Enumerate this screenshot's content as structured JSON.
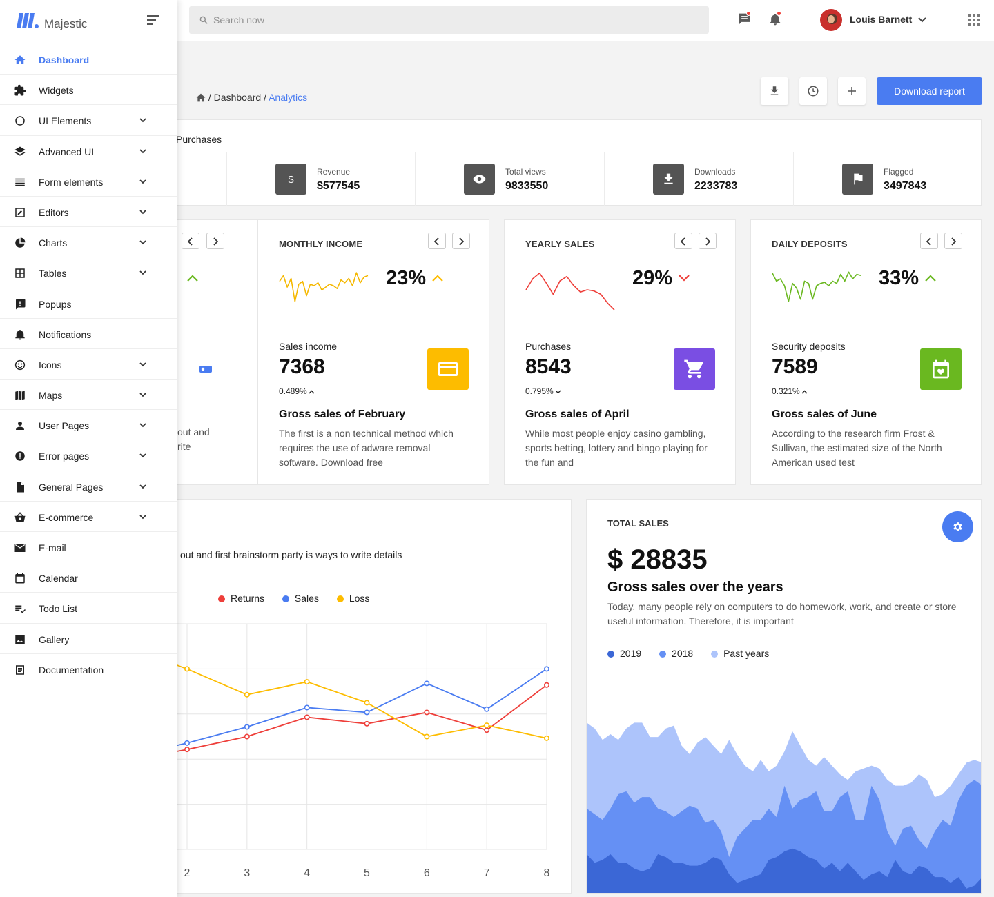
{
  "brand": {
    "name": "Majestic"
  },
  "search": {
    "placeholder": "Search now"
  },
  "user": {
    "name": "Louis Barnett"
  },
  "sidebar": {
    "items": [
      {
        "label": "Dashboard",
        "icon": "home-icon",
        "active": true,
        "expandable": false
      },
      {
        "label": "Widgets",
        "icon": "puzzle-icon",
        "expandable": false
      },
      {
        "label": "UI Elements",
        "icon": "circle-icon",
        "expandable": true
      },
      {
        "label": "Advanced UI",
        "icon": "layers-icon",
        "expandable": true
      },
      {
        "label": "Form elements",
        "icon": "lines-icon",
        "expandable": true
      },
      {
        "label": "Editors",
        "icon": "edit-icon",
        "expandable": true
      },
      {
        "label": "Charts",
        "icon": "pie-chart-icon",
        "expandable": true
      },
      {
        "label": "Tables",
        "icon": "table-icon",
        "expandable": true
      },
      {
        "label": "Popups",
        "icon": "popup-icon",
        "expandable": false
      },
      {
        "label": "Notifications",
        "icon": "bell-icon",
        "expandable": false
      },
      {
        "label": "Icons",
        "icon": "smiley-icon",
        "expandable": true
      },
      {
        "label": "Maps",
        "icon": "map-icon",
        "expandable": true
      },
      {
        "label": "User Pages",
        "icon": "person-icon",
        "expandable": true
      },
      {
        "label": "Error pages",
        "icon": "error-icon",
        "expandable": true
      },
      {
        "label": "General Pages",
        "icon": "file-icon",
        "expandable": true
      },
      {
        "label": "E-commerce",
        "icon": "basket-icon",
        "expandable": true
      },
      {
        "label": "E-mail",
        "icon": "mail-icon",
        "expandable": false
      },
      {
        "label": "Calendar",
        "icon": "calendar-icon",
        "expandable": false
      },
      {
        "label": "Todo List",
        "icon": "checklist-icon",
        "expandable": false
      },
      {
        "label": "Gallery",
        "icon": "image-icon",
        "expandable": false
      },
      {
        "label": "Documentation",
        "icon": "document-icon",
        "expandable": false
      }
    ]
  },
  "breadcrumb": {
    "sep": "/",
    "parent": "Dashboard",
    "current": "Analytics"
  },
  "actions": {
    "download_report": "Download report"
  },
  "stats": {
    "tab": "Purchases",
    "items": [
      {
        "label": "Revenue",
        "value": "$577545",
        "icon": "dollar-icon"
      },
      {
        "label": "Total views",
        "value": "9833550",
        "icon": "eye-icon"
      },
      {
        "label": "Downloads",
        "value": "2233783",
        "icon": "download-icon"
      },
      {
        "label": "Flagged",
        "value": "3497843",
        "icon": "flag-icon"
      }
    ]
  },
  "mini_cards": [
    {
      "title": "MONTHLY INCOME",
      "percent": "23%",
      "trend": "up",
      "spark_color": "#f5b800",
      "spark": [
        8,
        4,
        12,
        6,
        22,
        10,
        8,
        18,
        10,
        11,
        9,
        14,
        12,
        10,
        11,
        13,
        7,
        9,
        6,
        11,
        2,
        9,
        5,
        4
      ],
      "sub": "Sales income",
      "value": "7368",
      "change": "0.489%",
      "change_dir": "up",
      "icon": "credit-card-icon",
      "icon_bg": "#fdbc00",
      "gross_title": "Gross sales of February",
      "description": "The first is a non technical method which requires the use of adware removal software. Download free"
    },
    {
      "title": "YEARLY SALES",
      "percent": "29%",
      "trend": "down",
      "spark_color": "#ee3f3a",
      "spark": [
        18,
        8,
        3,
        12,
        22,
        10,
        6,
        14,
        20,
        18,
        19,
        22,
        30,
        36
      ],
      "sub": "Purchases",
      "value": "8543",
      "change": "0.795%",
      "change_dir": "down",
      "icon": "cart-icon",
      "icon_bg": "#7a4ee3",
      "gross_title": "Gross sales of April",
      "description": "While most people enjoy casino gambling, sports betting, lottery and bingo playing for the fun and"
    },
    {
      "title": "DAILY DEPOSITS",
      "percent": "33%",
      "trend": "up",
      "spark_color": "#6ab820",
      "spark": [
        3,
        10,
        8,
        14,
        28,
        12,
        16,
        26,
        10,
        12,
        26,
        14,
        12,
        11,
        14,
        10,
        12,
        4,
        10,
        2,
        8,
        4,
        5
      ],
      "sub": "Security deposits",
      "value": "7589",
      "change": "0.321%",
      "change_dir": "up",
      "icon": "calendar-heart-icon",
      "icon_bg": "#6ab820",
      "gross_title": "Gross sales of June",
      "description": "According to the research firm Frost & Sullivan, the estimated size of the North American used test"
    }
  ],
  "hidden_card": {
    "description_tail": [
      "out and",
      "rite"
    ],
    "icon": "wallet-icon",
    "icon_bg": "#4a7cf1"
  },
  "line_card": {
    "subtitle": "out and first brainstorm party is ways to write details",
    "legend": [
      {
        "name": "Returns",
        "color": "#ee3f3a"
      },
      {
        "name": "Sales",
        "color": "#4a7cf1"
      },
      {
        "name": "Loss",
        "color": "#fdbc00"
      }
    ]
  },
  "total_sales": {
    "title": "TOTAL SALES",
    "amount": "$ 28835",
    "heading": "Gross sales over the years",
    "description": "Today, many people rely on computers to do homework, work, and create or store useful information. Therefore, it is important",
    "legend": [
      {
        "name": "2019",
        "color": "#3b67d6"
      },
      {
        "name": "2018",
        "color": "#6590f4"
      },
      {
        "name": "Past years",
        "color": "#adc4fb"
      }
    ]
  },
  "chart_data": [
    {
      "type": "line",
      "x": [
        2,
        3,
        4,
        5,
        6,
        7,
        8
      ],
      "series": [
        {
          "name": "Returns",
          "values": [
            12,
            20,
            32,
            28,
            35,
            24,
            52
          ]
        },
        {
          "name": "Sales",
          "values": [
            16,
            26,
            38,
            35,
            53,
            37,
            62
          ]
        },
        {
          "name": "Loss",
          "values": [
            62,
            46,
            54,
            41,
            20,
            27,
            19
          ]
        }
      ],
      "ylim": [
        -50,
        90
      ],
      "grid": true,
      "legend": "top"
    },
    {
      "type": "area",
      "series": [
        {
          "name": "Past years",
          "values": [
            60,
            58,
            54,
            56,
            54,
            58,
            60,
            60,
            55,
            55,
            58,
            59,
            52,
            49,
            53,
            55,
            52,
            49,
            54,
            49,
            45,
            43,
            47,
            43,
            45,
            50,
            57,
            52,
            47,
            45,
            48,
            45,
            42,
            40,
            43,
            44,
            45,
            44,
            40,
            38,
            38,
            39,
            42,
            40,
            34,
            35,
            38,
            42,
            46,
            47,
            46
          ]
        },
        {
          "name": "2018",
          "values": [
            30,
            28,
            26,
            30,
            35,
            36,
            32,
            34,
            34,
            30,
            29,
            27,
            29,
            31,
            30,
            25,
            26,
            22,
            13,
            20,
            23,
            26,
            26,
            30,
            27,
            38,
            30,
            33,
            34,
            36,
            29,
            29,
            34,
            36,
            26,
            26,
            38,
            33,
            22,
            17,
            23,
            24,
            19,
            16,
            22,
            26,
            24,
            33,
            38,
            40,
            38
          ]
        },
        {
          "name": "2019",
          "values": [
            14,
            11,
            12,
            14,
            11,
            11,
            9,
            8,
            9,
            14,
            13,
            11,
            11,
            10,
            10,
            11,
            13,
            12,
            7,
            4,
            5,
            6,
            7,
            12,
            13,
            15,
            16,
            15,
            13,
            12,
            9,
            11,
            8,
            11,
            8,
            5,
            7,
            8,
            6,
            12,
            8,
            7,
            10,
            9,
            6,
            6,
            4,
            6,
            2,
            3,
            6
          ]
        }
      ],
      "legend": "top-left"
    }
  ]
}
